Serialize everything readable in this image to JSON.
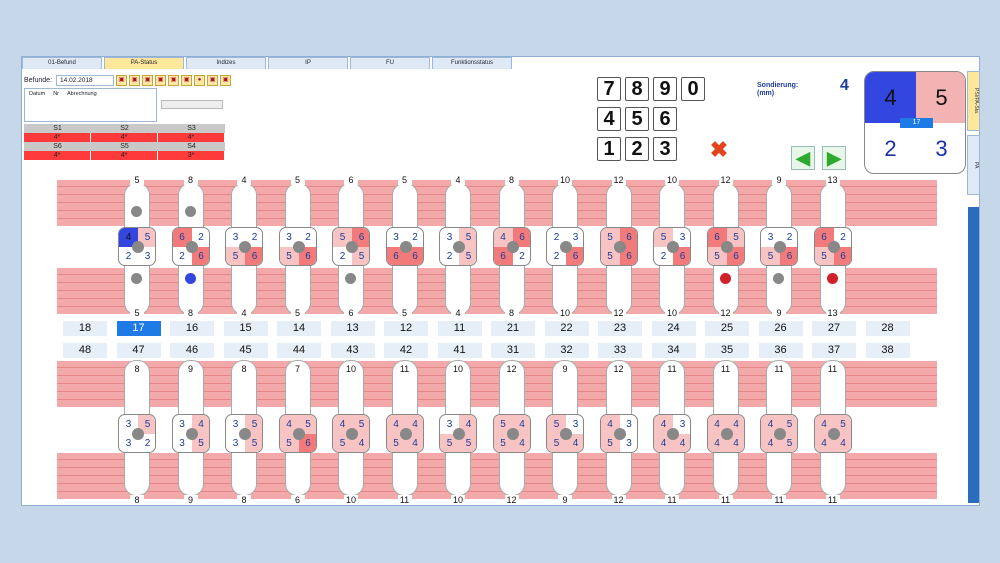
{
  "tabs": [
    "01-Befund",
    "PA-Status",
    "Indizes",
    "IP",
    "FU",
    "Funktionsstatus"
  ],
  "active_tab": "PA-Status",
  "toolbar": {
    "befunde_label": "Befunde:",
    "date": "14.02.2018",
    "icon_names": [
      "folder-icon",
      "tooth-icon",
      "tooth-icon",
      "tooth-icon",
      "tooth-icon",
      "tooth-icon",
      "blood-drop-icon",
      "tooth-icon",
      "tooth-icon"
    ]
  },
  "list": {
    "headers": [
      "Datum",
      "Nr",
      "Abrechnung"
    ]
  },
  "sextants": {
    "upper_header": [
      "S1",
      "S2",
      "S3"
    ],
    "upper_values": [
      "4*",
      "4*",
      "4*"
    ],
    "lower_header": [
      "S6",
      "S5",
      "S4"
    ],
    "lower_values": [
      "4*",
      "4*",
      "3*"
    ]
  },
  "keypad": {
    "row1": [
      "7",
      "8",
      "9",
      "0"
    ],
    "row2": [
      "4",
      "5",
      "6"
    ],
    "row3": [
      "1",
      "2",
      "3"
    ],
    "cancel_icon": "cross-icon"
  },
  "sondierung": {
    "label_line1": "Sondierung:",
    "label_line2": "(mm)",
    "value": "4"
  },
  "selected_tooth": {
    "q1": "4",
    "q2": "5",
    "q3": "2",
    "q4": "3",
    "badge": "17"
  },
  "side_tabs": [
    "PSI/PA-Sta.",
    "PA"
  ],
  "upper_top_labels": [
    "5",
    "8",
    "4",
    "5",
    "6",
    "5",
    "4",
    "8",
    "10",
    "12",
    "10",
    "12",
    "9",
    "13"
  ],
  "upper_bottom_labels": [
    "5",
    "8",
    "4",
    "5",
    "6",
    "5",
    "4",
    "8",
    "10",
    "12",
    "10",
    "12",
    "9",
    "13"
  ],
  "lower_top_labels": [
    "8",
    "9",
    "8",
    "7",
    "10",
    "11",
    "10",
    "12",
    "9",
    "12",
    "11",
    "11",
    "11",
    "11"
  ],
  "lower_bottom_labels": [
    "8",
    "9",
    "8",
    "6",
    "10",
    "11",
    "10",
    "12",
    "9",
    "12",
    "11",
    "11",
    "11",
    "11"
  ],
  "upper_numbers": [
    "18",
    "17",
    "16",
    "15",
    "14",
    "13",
    "12",
    "11",
    "21",
    "22",
    "23",
    "24",
    "25",
    "26",
    "27",
    "28"
  ],
  "lower_numbers": [
    "48",
    "47",
    "46",
    "45",
    "44",
    "43",
    "42",
    "41",
    "31",
    "32",
    "33",
    "34",
    "35",
    "36",
    "37",
    "38"
  ],
  "selected_number": "17",
  "upper_teeth": [
    [
      "4",
      "5",
      "2",
      "3"
    ],
    [
      "6",
      "2",
      "2",
      "6"
    ],
    [
      "3",
      "2",
      "5",
      "6"
    ],
    [
      "3",
      "2",
      "5",
      "6"
    ],
    [
      "5",
      "6",
      "2",
      "5"
    ],
    [
      "3",
      "2",
      "6",
      "6"
    ],
    [
      "3",
      "5",
      "2",
      "5"
    ],
    [
      "4",
      "6",
      "6",
      "2"
    ],
    [
      "2",
      "3",
      "2",
      "6"
    ],
    [
      "5",
      "6",
      "5",
      "6"
    ],
    [
      "5",
      "3",
      "2",
      "6"
    ],
    [
      "6",
      "5",
      "5",
      "6"
    ],
    [
      "3",
      "2",
      "5",
      "6"
    ],
    [
      "6",
      "2",
      "5",
      "6"
    ]
  ],
  "lower_teeth": [
    [
      "3",
      "5",
      "3",
      "2"
    ],
    [
      "3",
      "4",
      "3",
      "5"
    ],
    [
      "3",
      "5",
      "3",
      "5"
    ],
    [
      "4",
      "5",
      "5",
      "6"
    ],
    [
      "4",
      "5",
      "5",
      "4"
    ],
    [
      "4",
      "4",
      "5",
      "4"
    ],
    [
      "3",
      "4",
      "5",
      "5"
    ],
    [
      "5",
      "4",
      "5",
      "4"
    ],
    [
      "5",
      "3",
      "5",
      "4"
    ],
    [
      "4",
      "3",
      "5",
      "3"
    ],
    [
      "4",
      "3",
      "4",
      "4"
    ],
    [
      "4",
      "4",
      "4",
      "4"
    ],
    [
      "4",
      "5",
      "4",
      "5"
    ],
    [
      "4",
      "5",
      "4",
      "4"
    ]
  ],
  "colors": {
    "accent": "#1e7be6",
    "band": "#f3a9a9",
    "alert": "#ff3a3a",
    "tab_active": "#fde79a"
  }
}
